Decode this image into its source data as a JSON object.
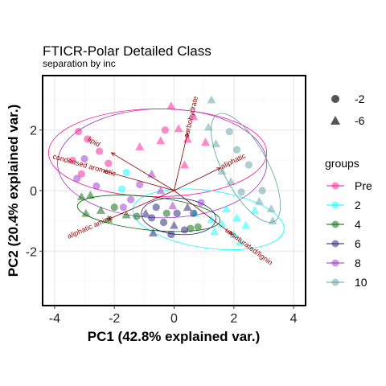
{
  "chart_data": {
    "type": "scatter",
    "title": "FTICR-Polar Detailed Class",
    "subtitle": "separation by inc",
    "xlabel": "PC1 (42.8% explained var.)",
    "ylabel": "PC2 (20.4% explained var.)",
    "xlim": [
      -4.4,
      4.4
    ],
    "ylim": [
      -3.8,
      3.8
    ],
    "xticks": [
      -4,
      -2,
      0,
      2,
      4
    ],
    "yticks": [
      -2,
      0,
      2
    ],
    "xtick_labels": [
      "-4",
      "-2",
      "0",
      "2",
      "4"
    ],
    "ytick_labels": [
      "-2",
      "0",
      "2"
    ],
    "grid": true,
    "shape_legend": {
      "items": [
        {
          "label": "-2",
          "shape": "circle"
        },
        {
          "label": "-6",
          "shape": "triangle"
        }
      ]
    },
    "group_legend": {
      "title": "groups",
      "items": [
        {
          "label": "Pre",
          "color": "#FF1493"
        },
        {
          "label": "2",
          "color": "#00FFFF"
        },
        {
          "label": "4",
          "color": "#006400"
        },
        {
          "label": "6",
          "color": "#191970"
        },
        {
          "label": "8",
          "color": "#9932CC"
        },
        {
          "label": "10",
          "color": "#5F9EA0"
        }
      ]
    },
    "loadings": [
      {
        "label": "carbohydrate",
        "x": 0.45,
        "y": 1.9
      },
      {
        "label": "lipid",
        "x": -2.1,
        "y": 1.25
      },
      {
        "label": "condensed aromatic",
        "x": -2.35,
        "y": 0.65
      },
      {
        "label": "aliphatic",
        "x": 1.55,
        "y": 0.75
      },
      {
        "label": "aliphatic amine",
        "x": -2.2,
        "y": -0.95
      },
      {
        "label": "unsaturated/lignin",
        "x": 1.95,
        "y": -1.45
      }
    ],
    "ellipses": [
      {
        "group": "Pre",
        "cx": -0.55,
        "cy": 1.25,
        "rx": 3.65,
        "ry": 1.45,
        "angle": 0
      },
      {
        "group": "2",
        "cx": 1.15,
        "cy": -0.95,
        "rx": 2.55,
        "ry": 0.95,
        "angle": -8
      },
      {
        "group": "4",
        "cx": -0.85,
        "cy": -0.75,
        "rx": 2.4,
        "ry": 0.55,
        "angle": -6
      },
      {
        "group": "6",
        "cx": 0.15,
        "cy": -0.85,
        "rx": 1.25,
        "ry": 0.6,
        "angle": -5
      },
      {
        "group": "8",
        "cx": -0.4,
        "cy": 0.9,
        "rx": 3.5,
        "ry": 1.8,
        "angle": 0
      },
      {
        "group": "10",
        "cx": 2.4,
        "cy": 0.75,
        "rx": 0.75,
        "ry": 2.0,
        "angle": 28
      }
    ],
    "series": [
      {
        "name": "Pre",
        "points": [
          {
            "x": -3.2,
            "y": 1.95,
            "s": "circle"
          },
          {
            "x": -2.9,
            "y": 1.7,
            "s": "circle"
          },
          {
            "x": -3.4,
            "y": 1.0,
            "s": "circle"
          },
          {
            "x": -2.5,
            "y": 1.3,
            "s": "circle"
          },
          {
            "x": -3.1,
            "y": 0.55,
            "s": "circle"
          },
          {
            "x": -0.3,
            "y": 2.0,
            "s": "circle"
          },
          {
            "x": -2.2,
            "y": 0.9,
            "s": "circle"
          },
          {
            "x": -0.1,
            "y": 2.8,
            "s": "triangle"
          },
          {
            "x": -0.45,
            "y": 1.65,
            "s": "triangle"
          },
          {
            "x": -1.15,
            "y": 1.45,
            "s": "triangle"
          },
          {
            "x": 0.45,
            "y": 1.7,
            "s": "triangle"
          },
          {
            "x": 0.65,
            "y": 2.45,
            "s": "triangle"
          },
          {
            "x": 1.05,
            "y": 1.6,
            "s": "triangle"
          },
          {
            "x": 0.15,
            "y": 2.05,
            "s": "triangle"
          },
          {
            "x": 0.35,
            "y": 0.85,
            "s": "triangle"
          }
        ]
      },
      {
        "name": "2",
        "points": [
          {
            "x": -1.6,
            "y": 0.6,
            "s": "circle"
          },
          {
            "x": -1.75,
            "y": 0.05,
            "s": "circle"
          },
          {
            "x": 2.1,
            "y": -0.9,
            "s": "triangle"
          },
          {
            "x": 1.6,
            "y": -1.1,
            "s": "triangle"
          },
          {
            "x": 2.0,
            "y": -1.45,
            "s": "triangle"
          },
          {
            "x": 1.35,
            "y": -1.35,
            "s": "triangle"
          },
          {
            "x": 2.7,
            "y": -0.65,
            "s": "triangle"
          },
          {
            "x": 2.4,
            "y": -1.15,
            "s": "triangle"
          },
          {
            "x": 1.75,
            "y": -0.6,
            "s": "triangle"
          },
          {
            "x": 1.25,
            "y": -0.95,
            "s": "triangle"
          },
          {
            "x": 2.2,
            "y": -1.7,
            "s": "triangle"
          },
          {
            "x": 0.7,
            "y": -0.75,
            "s": "triangle"
          }
        ]
      },
      {
        "name": "4",
        "points": [
          {
            "x": -3.1,
            "y": -0.2,
            "s": "triangle"
          },
          {
            "x": -2.8,
            "y": -0.15,
            "s": "triangle"
          },
          {
            "x": -2.95,
            "y": -0.75,
            "s": "triangle"
          },
          {
            "x": -2.45,
            "y": -0.65,
            "s": "triangle"
          },
          {
            "x": -2.2,
            "y": -0.95,
            "s": "triangle"
          },
          {
            "x": -1.6,
            "y": -0.8,
            "s": "triangle"
          },
          {
            "x": -2.0,
            "y": -0.55,
            "s": "circle"
          },
          {
            "x": -1.25,
            "y": -0.85,
            "s": "circle"
          },
          {
            "x": 0.55,
            "y": -1.25,
            "s": "circle"
          },
          {
            "x": -0.25,
            "y": -0.75,
            "s": "circle"
          },
          {
            "x": 0.8,
            "y": -1.2,
            "s": "circle"
          }
        ]
      },
      {
        "name": "6",
        "points": [
          {
            "x": -0.6,
            "y": -0.55,
            "s": "circle"
          },
          {
            "x": -0.35,
            "y": -1.05,
            "s": "circle"
          },
          {
            "x": 0.1,
            "y": -0.75,
            "s": "circle"
          },
          {
            "x": -0.75,
            "y": -0.9,
            "s": "circle"
          },
          {
            "x": 0.35,
            "y": -1.3,
            "s": "circle"
          },
          {
            "x": -0.1,
            "y": -1.45,
            "s": "circle"
          },
          {
            "x": 0.65,
            "y": -0.75,
            "s": "circle"
          },
          {
            "x": -0.95,
            "y": -0.75,
            "s": "triangle"
          },
          {
            "x": 0.0,
            "y": -1.15,
            "s": "triangle"
          },
          {
            "x": -0.7,
            "y": -1.4,
            "s": "triangle"
          },
          {
            "x": 0.45,
            "y": -0.55,
            "s": "triangle"
          }
        ]
      },
      {
        "name": "8",
        "points": [
          {
            "x": -3.25,
            "y": 0.4,
            "s": "circle"
          },
          {
            "x": -3.0,
            "y": 1.05,
            "s": "circle"
          },
          {
            "x": -2.6,
            "y": 0.15,
            "s": "circle"
          },
          {
            "x": -1.45,
            "y": -0.3,
            "s": "circle"
          },
          {
            "x": -1.15,
            "y": 0.2,
            "s": "circle"
          },
          {
            "x": -0.45,
            "y": 0.0,
            "s": "triangle"
          },
          {
            "x": -0.05,
            "y": -0.5,
            "s": "triangle"
          },
          {
            "x": 0.9,
            "y": -0.4,
            "s": "circle"
          },
          {
            "x": -1.7,
            "y": -0.55,
            "s": "circle"
          },
          {
            "x": -0.75,
            "y": 0.55,
            "s": "triangle"
          }
        ]
      },
      {
        "name": "10",
        "points": [
          {
            "x": 1.25,
            "y": 3.0,
            "s": "triangle"
          },
          {
            "x": 1.85,
            "y": 1.95,
            "s": "circle"
          },
          {
            "x": 2.1,
            "y": 1.35,
            "s": "circle"
          },
          {
            "x": 2.5,
            "y": 0.85,
            "s": "circle"
          },
          {
            "x": 2.95,
            "y": 0.0,
            "s": "circle"
          },
          {
            "x": 3.25,
            "y": -0.6,
            "s": "triangle"
          },
          {
            "x": 3.3,
            "y": -1.0,
            "s": "triangle"
          },
          {
            "x": 2.25,
            "y": -0.05,
            "s": "circle"
          },
          {
            "x": 1.4,
            "y": 1.55,
            "s": "triangle"
          },
          {
            "x": 1.6,
            "y": 0.65,
            "s": "triangle"
          },
          {
            "x": 2.85,
            "y": -0.35,
            "s": "triangle"
          },
          {
            "x": 1.9,
            "y": 0.3,
            "s": "triangle"
          },
          {
            "x": 1.15,
            "y": 2.1,
            "s": "triangle"
          }
        ]
      }
    ]
  }
}
